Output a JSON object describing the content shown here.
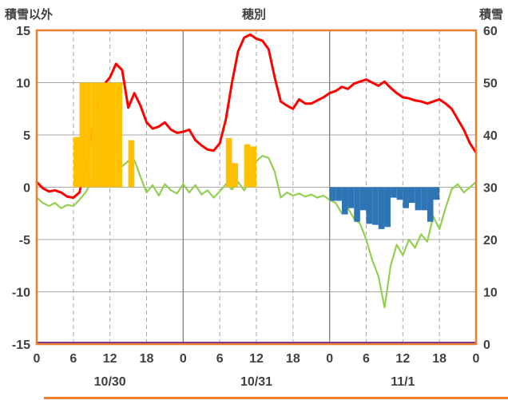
{
  "header": {
    "left_label": "積雪以外",
    "title": "穂別",
    "right_label": "積雪"
  },
  "colors": {
    "frame": "#ED7D31",
    "grid": "#A6A6A6",
    "day_grid": "#808080",
    "text": "#404040",
    "red_line": "#FF0000",
    "green_line": "#92D050",
    "yellow_bar": "#FFC000",
    "blue_bar": "#2E75B6",
    "purple_line": "#7030A0"
  },
  "chart_data": {
    "type": "line",
    "title": "穂別",
    "x_unit": "hour",
    "hours_total": 72,
    "x_tick_step": 6,
    "x_tick_labels": [
      "0",
      "6",
      "12",
      "18",
      "0",
      "6",
      "12",
      "18",
      "0",
      "6",
      "12",
      "18",
      "0"
    ],
    "date_labels": [
      "10/30",
      "10/31",
      "11/1"
    ],
    "left_axis": {
      "label": "積雪以外",
      "min": -15,
      "max": 15,
      "tick_values": [
        15,
        10,
        5,
        0,
        -5,
        -10,
        -15
      ]
    },
    "right_axis": {
      "label": "積雪",
      "min": 0,
      "max": 60,
      "tick_values": [
        60,
        50,
        40,
        30,
        20,
        10,
        0
      ]
    },
    "grid": true,
    "legend": "none",
    "series": [
      {
        "name": "temperature-red-line",
        "type": "line",
        "axis": "left",
        "color": "#FF0000",
        "stroke_width": 3,
        "values": [
          0.5,
          -0.1,
          -0.4,
          -0.3,
          -0.5,
          -0.9,
          -1.0,
          -0.5,
          2.0,
          5.0,
          8.0,
          9.8,
          10.5,
          11.8,
          11.2,
          7.6,
          9.0,
          7.8,
          6.2,
          5.6,
          5.8,
          6.2,
          5.5,
          5.2,
          5.3,
          5.5,
          4.5,
          4.0,
          3.6,
          3.5,
          4.2,
          6.5,
          10.0,
          13.0,
          14.3,
          14.6,
          14.2,
          14.0,
          13.2,
          10.5,
          8.2,
          7.8,
          7.5,
          8.4,
          8.0,
          8.0,
          8.3,
          8.6,
          9.0,
          9.2,
          9.6,
          9.4,
          9.9,
          10.1,
          10.3,
          10.0,
          9.7,
          10.1,
          9.5,
          9.0,
          8.6,
          8.5,
          8.3,
          8.2,
          8.0,
          8.2,
          8.4,
          8.0,
          7.5,
          6.5,
          5.5,
          4.2,
          3.3
        ]
      },
      {
        "name": "green-line",
        "type": "line",
        "axis": "left",
        "color": "#92D050",
        "stroke_width": 2.2,
        "values": [
          -1.0,
          -1.5,
          -1.8,
          -1.5,
          -2.0,
          -1.7,
          -1.8,
          -1.2,
          -0.5,
          0.5,
          1.5,
          3.0,
          5.3,
          4.0,
          2.0,
          2.5,
          2.6,
          1.0,
          -0.5,
          0.2,
          -0.8,
          0.3,
          -0.3,
          -0.6,
          0.3,
          -0.5,
          0.2,
          -0.7,
          -0.3,
          -1.0,
          -0.4,
          0.3,
          -0.2,
          0.5,
          -0.3,
          0.8,
          2.5,
          3.0,
          2.8,
          1.5,
          -1.0,
          -0.5,
          -0.8,
          -0.6,
          -0.9,
          -0.7,
          -1.0,
          -0.8,
          -1.2,
          -1.5,
          -2.5,
          -2.0,
          -3.0,
          -3.5,
          -5.0,
          -7.0,
          -8.5,
          -11.5,
          -7.5,
          -5.5,
          -6.5,
          -5.0,
          -5.8,
          -4.5,
          -5.2,
          -2.8,
          -4.0,
          -2.0,
          -0.2,
          0.3,
          -0.5,
          0.0,
          0.5
        ]
      },
      {
        "name": "yellow-bars",
        "type": "bar",
        "axis": "left",
        "color": "#FFC000",
        "points": [
          [
            6,
            4.8
          ],
          [
            7,
            10
          ],
          [
            8,
            10
          ],
          [
            9,
            10
          ],
          [
            10,
            10
          ],
          [
            11,
            10
          ],
          [
            12,
            10
          ],
          [
            13,
            10
          ],
          [
            15,
            4.5
          ],
          [
            31,
            4.7
          ],
          [
            32,
            2.3
          ],
          [
            34,
            4.1
          ],
          [
            35,
            3.9
          ]
        ]
      },
      {
        "name": "blue-bars",
        "type": "bar",
        "axis": "left",
        "color": "#2E75B6",
        "points": [
          [
            48,
            -1.3
          ],
          [
            49,
            -1.3
          ],
          [
            50,
            -2.6
          ],
          [
            51,
            -2.0
          ],
          [
            52,
            -3.3
          ],
          [
            53,
            -2.2
          ],
          [
            54,
            -3.5
          ],
          [
            55,
            -3.6
          ],
          [
            56,
            -4.0
          ],
          [
            57,
            -3.8
          ],
          [
            58,
            -1.0
          ],
          [
            59,
            -1.2
          ],
          [
            60,
            -2.0
          ],
          [
            61,
            -1.5
          ],
          [
            62,
            -2.2
          ],
          [
            63,
            -2.2
          ],
          [
            64,
            -3.3
          ],
          [
            65,
            -1.2
          ]
        ]
      },
      {
        "name": "snow-depth-purple-line",
        "type": "line",
        "axis": "right",
        "color": "#7030A0",
        "stroke_width": 2.5,
        "points": [
          [
            0,
            0
          ],
          [
            72,
            0
          ]
        ]
      }
    ]
  }
}
